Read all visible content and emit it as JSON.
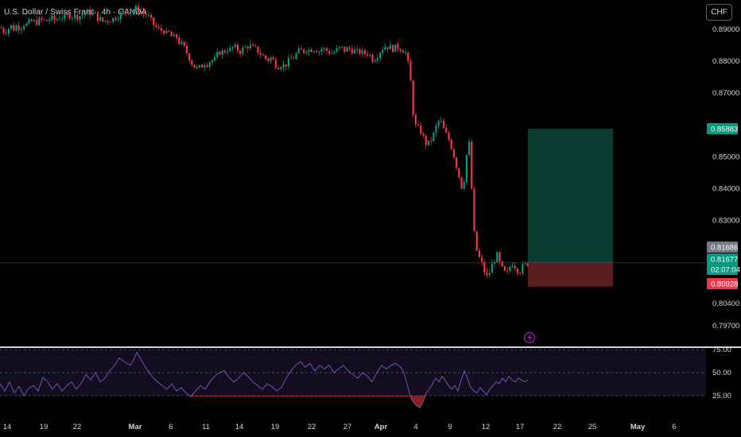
{
  "chart_data": {
    "type": "candlestick",
    "title": "U.S. Dollar / Swiss Franc · 4h · OANDA",
    "currency_label": "CHF",
    "price_axis": {
      "ticks": [
        "0.89000",
        "0.88000",
        "0.87000",
        "0.85000",
        "0.84000",
        "0.83000",
        "0.80400",
        "0.79700"
      ],
      "tick_values": [
        0.89,
        0.88,
        0.87,
        0.85,
        0.84,
        0.83,
        0.804,
        0.797
      ],
      "ylim": [
        0.7935,
        0.8955
      ]
    },
    "date_axis": {
      "labels": [
        "14",
        "19",
        "22",
        "Mar",
        "6",
        "11",
        "14",
        "19",
        "22",
        "27",
        "Apr",
        "4",
        "9",
        "12",
        "17",
        "22",
        "25",
        "May",
        "6"
      ],
      "highlight": [
        "Mar",
        "Apr",
        "May"
      ]
    },
    "price_labels": [
      {
        "text": "0.85883",
        "value": 0.85883,
        "color": "#089981"
      },
      {
        "text": "0.81686",
        "value": 0.81686,
        "color": "#787b86"
      },
      {
        "text": "0.81677",
        "value": 0.81677,
        "color": "#089981"
      },
      {
        "text": "02:07:04",
        "value": 0.81677,
        "color": "#089981"
      },
      {
        "text": "0.80928",
        "value": 0.80928,
        "color": "#f23645"
      }
    ],
    "position": {
      "entry": 0.81686,
      "target": 0.85883,
      "stop": 0.80928,
      "profit_color": "#0c3b30",
      "loss_color": "#5a1f1d"
    },
    "candle_colors": {
      "up": "#089981",
      "down": "#f23645"
    },
    "price_path": [
      [
        0,
        0.8905
      ],
      [
        4,
        0.8892
      ],
      [
        8,
        0.8898
      ],
      [
        12,
        0.8912
      ],
      [
        16,
        0.8902
      ],
      [
        20,
        0.8913
      ],
      [
        24,
        0.8905
      ],
      [
        28,
        0.8918
      ],
      [
        32,
        0.8915
      ],
      [
        38,
        0.8925
      ],
      [
        44,
        0.8922
      ],
      [
        50,
        0.893
      ],
      [
        56,
        0.8925
      ],
      [
        62,
        0.8935
      ],
      [
        68,
        0.8928
      ],
      [
        74,
        0.894
      ],
      [
        80,
        0.8938
      ],
      [
        86,
        0.8945
      ],
      [
        92,
        0.894
      ],
      [
        98,
        0.8942
      ],
      [
        104,
        0.8948
      ],
      [
        110,
        0.8955
      ],
      [
        116,
        0.895
      ],
      [
        122,
        0.8935
      ],
      [
        128,
        0.8925
      ],
      [
        134,
        0.893
      ],
      [
        140,
        0.8932
      ],
      [
        146,
        0.894
      ],
      [
        152,
        0.895
      ],
      [
        158,
        0.896
      ],
      [
        164,
        0.8955
      ],
      [
        170,
        0.8965
      ],
      [
        176,
        0.8955
      ],
      [
        180,
        0.895
      ],
      [
        184,
        0.8945
      ],
      [
        188,
        0.893
      ],
      [
        192,
        0.8915
      ],
      [
        196,
        0.8905
      ],
      [
        200,
        0.8895
      ],
      [
        204,
        0.89
      ],
      [
        208,
        0.8885
      ],
      [
        212,
        0.889
      ],
      [
        216,
        0.887
      ],
      [
        220,
        0.888
      ],
      [
        224,
        0.886
      ],
      [
        228,
        0.885
      ],
      [
        232,
        0.8835
      ],
      [
        236,
        0.8815
      ],
      [
        240,
        0.8795
      ],
      [
        244,
        0.878
      ],
      [
        248,
        0.8775
      ],
      [
        252,
        0.8785
      ],
      [
        256,
        0.8795
      ],
      [
        260,
        0.8792
      ],
      [
        264,
        0.8805
      ],
      [
        268,
        0.88
      ],
      [
        272,
        0.882
      ],
      [
        276,
        0.8832
      ],
      [
        280,
        0.8828
      ],
      [
        284,
        0.884
      ],
      [
        288,
        0.8835
      ],
      [
        292,
        0.8845
      ],
      [
        296,
        0.884
      ],
      [
        300,
        0.883
      ],
      [
        304,
        0.8838
      ],
      [
        308,
        0.8845
      ],
      [
        312,
        0.885
      ],
      [
        316,
        0.8842
      ],
      [
        320,
        0.8838
      ],
      [
        324,
        0.883
      ],
      [
        328,
        0.882
      ],
      [
        332,
        0.881
      ],
      [
        336,
        0.8805
      ],
      [
        340,
        0.8812
      ],
      [
        344,
        0.8795
      ],
      [
        348,
        0.8785
      ],
      [
        352,
        0.879
      ],
      [
        356,
        0.8785
      ],
      [
        360,
        0.8795
      ],
      [
        364,
        0.8805
      ],
      [
        368,
        0.8812
      ],
      [
        372,
        0.8825
      ],
      [
        376,
        0.8835
      ],
      [
        380,
        0.883
      ],
      [
        384,
        0.884
      ],
      [
        388,
        0.8835
      ],
      [
        392,
        0.884
      ],
      [
        396,
        0.8838
      ],
      [
        400,
        0.8832
      ],
      [
        404,
        0.884
      ],
      [
        408,
        0.8835
      ],
      [
        412,
        0.883
      ],
      [
        416,
        0.8825
      ],
      [
        420,
        0.883
      ],
      [
        424,
        0.8838
      ],
      [
        428,
        0.8842
      ],
      [
        432,
        0.8835
      ],
      [
        436,
        0.884
      ],
      [
        440,
        0.8838
      ],
      [
        444,
        0.8832
      ],
      [
        448,
        0.8828
      ],
      [
        452,
        0.883
      ],
      [
        456,
        0.8822
      ],
      [
        460,
        0.8828
      ],
      [
        464,
        0.8818
      ],
      [
        468,
        0.8805
      ],
      [
        472,
        0.8815
      ],
      [
        476,
        0.883
      ],
      [
        480,
        0.8842
      ],
      [
        484,
        0.8848
      ],
      [
        488,
        0.8845
      ],
      [
        492,
        0.884
      ],
      [
        496,
        0.8842
      ],
      [
        500,
        0.8845
      ],
      [
        504,
        0.884
      ],
      [
        508,
        0.883
      ],
      [
        510,
        0.882
      ],
      [
        512,
        0.879
      ],
      [
        514,
        0.876
      ],
      [
        516,
        0.872
      ],
      [
        518,
        0.865
      ],
      [
        520,
        0.86
      ],
      [
        524,
        0.859
      ],
      [
        528,
        0.858
      ],
      [
        532,
        0.8555
      ],
      [
        536,
        0.8535
      ],
      [
        540,
        0.855
      ],
      [
        544,
        0.857
      ],
      [
        548,
        0.86
      ],
      [
        552,
        0.862
      ],
      [
        556,
        0.859
      ],
      [
        560,
        0.857
      ],
      [
        564,
        0.855
      ],
      [
        568,
        0.852
      ],
      [
        572,
        0.848
      ],
      [
        576,
        0.844
      ],
      [
        580,
        0.84
      ],
      [
        584,
        0.845
      ],
      [
        586,
        0.852
      ],
      [
        588,
        0.856
      ],
      [
        590,
        0.851
      ],
      [
        592,
        0.84
      ],
      [
        594,
        0.83
      ],
      [
        596,
        0.823
      ],
      [
        600,
        0.819
      ],
      [
        604,
        0.817
      ],
      [
        608,
        0.814
      ],
      [
        612,
        0.812
      ],
      [
        616,
        0.815
      ],
      [
        620,
        0.8175
      ],
      [
        624,
        0.819
      ],
      [
        628,
        0.816
      ],
      [
        632,
        0.814
      ],
      [
        636,
        0.813
      ],
      [
        640,
        0.8155
      ],
      [
        644,
        0.817
      ],
      [
        648,
        0.815
      ],
      [
        652,
        0.814
      ],
      [
        656,
        0.8155
      ],
      [
        660,
        0.8162
      ],
      [
        664,
        0.8168
      ]
    ],
    "rsi": {
      "levels": [
        "75.00",
        "50.00",
        "25.00"
      ],
      "level_values": [
        75,
        50,
        25
      ],
      "line_color": "#7e57c2",
      "oversold_color": "#f23645",
      "values": [
        [
          0,
          38
        ],
        [
          6,
          30
        ],
        [
          12,
          40
        ],
        [
          18,
          28
        ],
        [
          24,
          35
        ],
        [
          30,
          25
        ],
        [
          36,
          33
        ],
        [
          42,
          36
        ],
        [
          48,
          30
        ],
        [
          54,
          45
        ],
        [
          60,
          40
        ],
        [
          66,
          32
        ],
        [
          72,
          38
        ],
        [
          78,
          30
        ],
        [
          84,
          36
        ],
        [
          90,
          40
        ],
        [
          96,
          32
        ],
        [
          102,
          38
        ],
        [
          108,
          48
        ],
        [
          114,
          42
        ],
        [
          120,
          50
        ],
        [
          126,
          40
        ],
        [
          132,
          44
        ],
        [
          138,
          52
        ],
        [
          144,
          58
        ],
        [
          150,
          66
        ],
        [
          156,
          62
        ],
        [
          160,
          60
        ],
        [
          164,
          58
        ],
        [
          168,
          64
        ],
        [
          172,
          72
        ],
        [
          176,
          66
        ],
        [
          180,
          60
        ],
        [
          186,
          52
        ],
        [
          192,
          45
        ],
        [
          198,
          40
        ],
        [
          204,
          36
        ],
        [
          210,
          32
        ],
        [
          216,
          38
        ],
        [
          222,
          30
        ],
        [
          228,
          34
        ],
        [
          234,
          28
        ],
        [
          240,
          24
        ],
        [
          246,
          30
        ],
        [
          252,
          36
        ],
        [
          258,
          32
        ],
        [
          264,
          40
        ],
        [
          270,
          46
        ],
        [
          276,
          50
        ],
        [
          282,
          52
        ],
        [
          288,
          45
        ],
        [
          294,
          40
        ],
        [
          300,
          44
        ],
        [
          306,
          50
        ],
        [
          312,
          46
        ],
        [
          318,
          40
        ],
        [
          324,
          36
        ],
        [
          330,
          32
        ],
        [
          336,
          38
        ],
        [
          342,
          35
        ],
        [
          348,
          30
        ],
        [
          354,
          34
        ],
        [
          360,
          44
        ],
        [
          366,
          52
        ],
        [
          372,
          58
        ],
        [
          378,
          62
        ],
        [
          384,
          56
        ],
        [
          390,
          60
        ],
        [
          396,
          52
        ],
        [
          402,
          58
        ],
        [
          408,
          54
        ],
        [
          414,
          58
        ],
        [
          420,
          50
        ],
        [
          426,
          54
        ],
        [
          432,
          58
        ],
        [
          438,
          52
        ],
        [
          444,
          48
        ],
        [
          450,
          44
        ],
        [
          456,
          50
        ],
        [
          462,
          46
        ],
        [
          468,
          40
        ],
        [
          474,
          50
        ],
        [
          480,
          58
        ],
        [
          486,
          54
        ],
        [
          492,
          58
        ],
        [
          498,
          60
        ],
        [
          504,
          56
        ],
        [
          508,
          50
        ],
        [
          512,
          38
        ],
        [
          516,
          24
        ],
        [
          520,
          18
        ],
        [
          524,
          14
        ],
        [
          528,
          12
        ],
        [
          532,
          18
        ],
        [
          536,
          28
        ],
        [
          540,
          32
        ],
        [
          544,
          38
        ],
        [
          548,
          44
        ],
        [
          552,
          40
        ],
        [
          556,
          46
        ],
        [
          560,
          42
        ],
        [
          564,
          36
        ],
        [
          568,
          32
        ],
        [
          572,
          36
        ],
        [
          576,
          30
        ],
        [
          580,
          42
        ],
        [
          584,
          52
        ],
        [
          588,
          44
        ],
        [
          592,
          34
        ],
        [
          596,
          30
        ],
        [
          600,
          28
        ],
        [
          604,
          34
        ],
        [
          608,
          30
        ],
        [
          612,
          26
        ],
        [
          616,
          32
        ],
        [
          620,
          36
        ],
        [
          624,
          40
        ],
        [
          628,
          38
        ],
        [
          632,
          44
        ],
        [
          636,
          40
        ],
        [
          640,
          46
        ],
        [
          644,
          42
        ],
        [
          648,
          40
        ],
        [
          652,
          44
        ],
        [
          656,
          42
        ],
        [
          660,
          40
        ],
        [
          664,
          42
        ]
      ]
    }
  }
}
